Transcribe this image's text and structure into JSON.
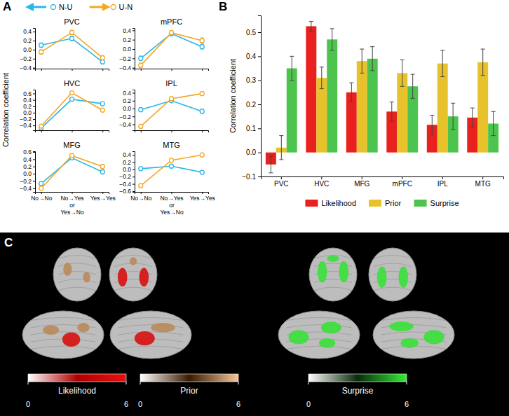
{
  "chart_data": [
    {
      "type": "line",
      "panel": "A",
      "ylabel": "Correlation coefficient",
      "categories": [
        "No→No",
        "No→Yes\nor\nYes→No",
        "Yes→Yes"
      ],
      "legend": "top",
      "series": [
        {
          "name": "N-U",
          "color": "#29b6e8",
          "marker": "open circle",
          "line_style": "solid"
        },
        {
          "name": "U-N",
          "color": "#f5a623",
          "marker": "open circle",
          "line_style": "solid"
        }
      ],
      "subplots": [
        {
          "title": "PVC",
          "tick_labels": "y",
          "ylim": [
            -0.42,
            0.48
          ],
          "yticks": [
            {
              "value": -0.4,
              "label": "−0.4"
            },
            {
              "value": -0.2,
              "label": "−0.2"
            },
            {
              "value": 0,
              "label": "0.0"
            },
            {
              "value": 0.2,
              "label": "0.2"
            },
            {
              "value": 0.4,
              "label": "0.4"
            }
          ],
          "series": [
            {
              "values": [
                0.1,
                0.25,
                -0.27
              ],
              "errors": [
                0.05,
                0.05,
                0.05
              ]
            },
            {
              "values": [
                -0.05,
                0.38,
                -0.18
              ],
              "errors": [
                0.05,
                0.05,
                0.05
              ]
            }
          ]
        },
        {
          "title": "mPFC",
          "tick_labels": "y",
          "ylim": [
            -0.42,
            0.45
          ],
          "yticks": [
            {
              "value": -0.4,
              "label": "−0.4"
            },
            {
              "value": -0.2,
              "label": "−0.2"
            },
            {
              "value": 0,
              "label": "0.0"
            },
            {
              "value": 0.2,
              "label": "0.2"
            },
            {
              "value": 0.4,
              "label": "0.4"
            }
          ],
          "series": [
            {
              "values": [
                -0.2,
                0.33,
                0.05
              ],
              "errors": [
                0.05,
                0.05,
                0.05
              ]
            },
            {
              "values": [
                -0.35,
                0.35,
                0.18
              ],
              "errors": [
                0.05,
                0.05,
                0.06
              ]
            }
          ]
        },
        {
          "title": "HVC",
          "tick_labels": "y",
          "ylim": [
            -0.55,
            0.72
          ],
          "yticks": [
            {
              "value": -0.4,
              "label": "−0.4"
            },
            {
              "value": -0.2,
              "label": "−0.2"
            },
            {
              "value": 0,
              "label": "0.0"
            },
            {
              "value": 0.2,
              "label": "0.2"
            },
            {
              "value": 0.4,
              "label": "0.4"
            },
            {
              "value": 0.6,
              "label": "0.6"
            }
          ],
          "series": [
            {
              "values": [
                -0.48,
                0.42,
                0.28
              ],
              "errors": [
                0.04,
                0.04,
                0.05
              ]
            },
            {
              "values": [
                -0.42,
                0.62,
                0.08
              ],
              "errors": [
                0.04,
                0.05,
                0.05
              ]
            }
          ]
        },
        {
          "title": "IPL",
          "tick_labels": "y",
          "ylim": [
            -0.55,
            0.48
          ],
          "yticks": [
            {
              "value": -0.4,
              "label": "−0.4"
            },
            {
              "value": -0.2,
              "label": "−0.2"
            },
            {
              "value": 0,
              "label": "0.0"
            },
            {
              "value": 0.2,
              "label": "0.2"
            },
            {
              "value": 0.4,
              "label": "0.4"
            }
          ],
          "series": [
            {
              "values": [
                -0.03,
                0.2,
                -0.07
              ],
              "errors": [
                0.05,
                0.05,
                0.05
              ]
            },
            {
              "values": [
                -0.45,
                0.25,
                0.38
              ],
              "errors": [
                0.05,
                0.05,
                0.05
              ]
            }
          ]
        },
        {
          "title": "MFG",
          "ylim": [
            -0.5,
            0.62
          ],
          "yticks": [
            {
              "value": -0.4,
              "label": "−0.4"
            },
            {
              "value": -0.2,
              "label": "−0.2"
            },
            {
              "value": 0,
              "label": "0.0"
            },
            {
              "value": 0.2,
              "label": "0.2"
            },
            {
              "value": 0.4,
              "label": "0.4"
            },
            {
              "value": 0.6,
              "label": "0.6"
            }
          ],
          "series": [
            {
              "values": [
                -0.27,
                0.44,
                0.05
              ],
              "errors": [
                0.05,
                0.05,
                0.05
              ]
            },
            {
              "values": [
                -0.4,
                0.5,
                0.2
              ],
              "errors": [
                0.05,
                0.05,
                0.05
              ]
            }
          ]
        },
        {
          "title": "MTG",
          "ylim": [
            -0.62,
            0.5
          ],
          "yticks": [
            {
              "value": -0.6,
              "label": "−0.6"
            },
            {
              "value": -0.4,
              "label": "−0.4"
            },
            {
              "value": -0.2,
              "label": "−0.2"
            },
            {
              "value": 0,
              "label": "0.0"
            },
            {
              "value": 0.2,
              "label": "0.2"
            },
            {
              "value": 0.4,
              "label": "0.4"
            }
          ],
          "series": [
            {
              "values": [
                0.02,
                0.09,
                -0.08
              ],
              "errors": [
                0.05,
                0.04,
                0.05
              ]
            },
            {
              "values": [
                -0.45,
                0.25,
                0.4
              ],
              "errors": [
                0.05,
                0.05,
                0.05
              ]
            }
          ]
        }
      ]
    },
    {
      "type": "bar",
      "panel": "B",
      "ylabel": "Correlation coefficient",
      "categories": [
        "PVC",
        "HVC",
        "MFG",
        "mPFC",
        "IPL",
        "MTG"
      ],
      "ylim": [
        -0.1,
        0.57
      ],
      "yticks": [
        {
          "value": -0.1,
          "label": "−0.1"
        },
        {
          "value": 0,
          "label": "0.0"
        },
        {
          "value": 0.1,
          "label": "0.1"
        },
        {
          "value": 0.2,
          "label": "0.2"
        },
        {
          "value": 0.3,
          "label": "0.3"
        },
        {
          "value": 0.4,
          "label": "0.4"
        },
        {
          "value": 0.5,
          "label": "0.5"
        }
      ],
      "legend": "bottom",
      "series": [
        {
          "name": "Likelihood",
          "color": "#e8201e",
          "values": [
            -0.05,
            0.525,
            0.25,
            0.17,
            0.115,
            0.145
          ],
          "errors": [
            0.035,
            0.02,
            0.04,
            0.04,
            0.04,
            0.04
          ]
        },
        {
          "name": "Prior",
          "color": "#e8c22a",
          "values": [
            0.02,
            0.31,
            0.38,
            0.33,
            0.37,
            0.375
          ],
          "errors": [
            0.05,
            0.045,
            0.05,
            0.055,
            0.055,
            0.055
          ]
        },
        {
          "name": "Surprise",
          "color": "#4dc44d",
          "values": [
            0.35,
            0.47,
            0.39,
            0.275,
            0.15,
            0.12
          ],
          "errors": [
            0.05,
            0.045,
            0.05,
            0.05,
            0.055,
            0.05
          ]
        }
      ]
    },
    {
      "type": "brain_map",
      "panel": "C",
      "colorbars": [
        {
          "name": "Likelihood",
          "colors": [
            "#ffffff",
            "#b00000",
            "#e81010"
          ],
          "lim": [
            0,
            6
          ],
          "ticks": [
            0,
            6
          ]
        },
        {
          "name": "Prior",
          "colors": [
            "#ffffff",
            "#3a1a00",
            "#f5c89a"
          ],
          "lim": [
            0,
            6
          ],
          "ticks": [
            0,
            6
          ]
        },
        {
          "name": "Surprise",
          "colors": [
            "#ffffff",
            "#0a2a0a",
            "#33ee33"
          ],
          "lim": [
            0,
            6
          ],
          "ticks": [
            0,
            6
          ]
        }
      ]
    }
  ]
}
